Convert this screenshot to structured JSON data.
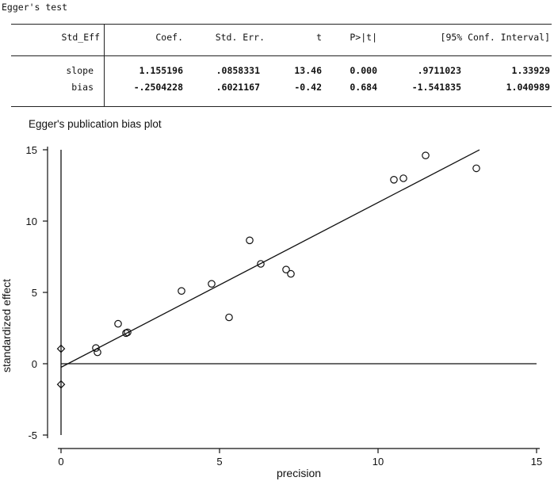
{
  "test": {
    "title": "Egger's test",
    "columns": [
      "Std_Eff",
      "Coef.",
      "Std. Err.",
      "t",
      "P>|t|",
      "[95% Conf. Interval]"
    ],
    "rows": [
      {
        "label": "slope",
        "coef": "1.155196",
        "se": ".0858331",
        "t": "13.46",
        "p": "0.000",
        "ci_low": ".9711023",
        "ci_high": "1.33929"
      },
      {
        "label": "bias",
        "coef": "-.2504228",
        "se": ".6021167",
        "t": "-0.42",
        "p": "0.684",
        "ci_low": "-1.541835",
        "ci_high": "1.040989"
      }
    ]
  },
  "chart_data": {
    "type": "scatter",
    "title": "Egger's publication bias plot",
    "xlabel": "precision",
    "ylabel": "standardized effect",
    "xlim": [
      0,
      15
    ],
    "ylim": [
      -5,
      15
    ],
    "xticks": [
      0,
      5,
      10,
      15
    ],
    "yticks": [
      -5,
      0,
      5,
      10,
      15
    ],
    "grid": false,
    "legend": "none",
    "series": [
      {
        "marker": "circle",
        "points": [
          [
            1.1,
            1.1
          ],
          [
            1.15,
            0.8
          ],
          [
            1.8,
            2.8
          ],
          [
            2.05,
            2.15
          ],
          [
            2.1,
            2.2
          ],
          [
            3.8,
            5.1
          ],
          [
            4.75,
            5.6
          ],
          [
            5.3,
            3.25
          ],
          [
            5.95,
            8.65
          ],
          [
            6.3,
            7.0
          ],
          [
            7.1,
            6.6
          ],
          [
            7.25,
            6.3
          ],
          [
            10.5,
            12.9
          ],
          [
            10.8,
            13.0
          ],
          [
            11.5,
            14.6
          ],
          [
            13.1,
            13.7
          ]
        ]
      },
      {
        "marker": "diamond",
        "points": [
          [
            0,
            1.05
          ],
          [
            0,
            -1.45
          ]
        ]
      }
    ],
    "fit_line": {
      "intercept": -0.2504228,
      "slope": 1.155196,
      "x_range": [
        0,
        13.2
      ]
    },
    "reference_lines": {
      "x": 0,
      "y": 0
    }
  }
}
